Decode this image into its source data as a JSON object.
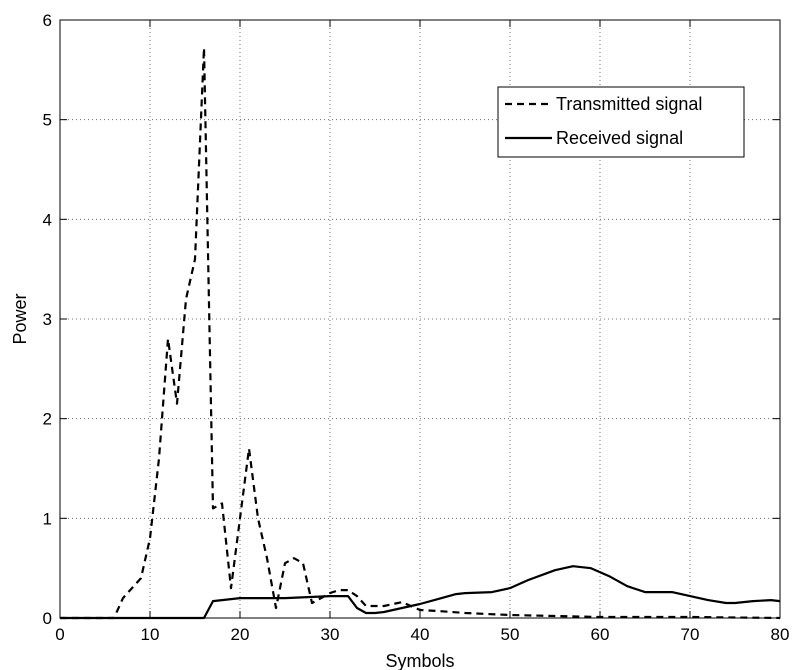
{
  "chart_data": {
    "type": "line",
    "title": "",
    "xlabel": "Symbols",
    "ylabel": "Power",
    "xlim": [
      0,
      80
    ],
    "ylim": [
      0,
      6
    ],
    "xticks": [
      0,
      10,
      20,
      30,
      40,
      50,
      60,
      70,
      80
    ],
    "yticks": [
      0,
      1,
      2,
      3,
      4,
      5,
      6
    ],
    "xtick_labels": [
      "0",
      "10",
      "20",
      "30",
      "40",
      "50",
      "60",
      "70",
      "80"
    ],
    "ytick_labels": [
      "0",
      "1",
      "2",
      "3",
      "4",
      "5",
      "6"
    ],
    "grid": true,
    "legend_position": "top-right",
    "series": [
      {
        "name": "Transmitted signal",
        "style": "dashed",
        "color": "#000000",
        "x": [
          0,
          6,
          7,
          8,
          9,
          10,
          11,
          12,
          13,
          14,
          15,
          16,
          17,
          18,
          19,
          20,
          21,
          22,
          23,
          24,
          25,
          26,
          27,
          28,
          29,
          30,
          31,
          32,
          33,
          34,
          35,
          36,
          38,
          40,
          42,
          45,
          50,
          55,
          60,
          65,
          70,
          80
        ],
        "y": [
          0,
          0,
          0.2,
          0.3,
          0.4,
          0.8,
          1.6,
          2.8,
          2.15,
          3.2,
          3.6,
          5.72,
          1.1,
          1.15,
          0.3,
          1.0,
          1.7,
          1.0,
          0.6,
          0.1,
          0.55,
          0.6,
          0.55,
          0.15,
          0.2,
          0.25,
          0.28,
          0.28,
          0.22,
          0.12,
          0.12,
          0.12,
          0.16,
          0.08,
          0.07,
          0.05,
          0.03,
          0.02,
          0.01,
          0.01,
          0.01,
          0.0
        ]
      },
      {
        "name": "Received signal",
        "style": "solid",
        "color": "#000000",
        "x": [
          0,
          16,
          17,
          20,
          25,
          30,
          32,
          33,
          34,
          35,
          36,
          38,
          40,
          42,
          44,
          45,
          48,
          50,
          52,
          55,
          57,
          59,
          61,
          63,
          65,
          67,
          68,
          70,
          72,
          74,
          75,
          77,
          79,
          80
        ],
        "y": [
          0,
          0,
          0.17,
          0.2,
          0.2,
          0.22,
          0.22,
          0.1,
          0.05,
          0.05,
          0.06,
          0.1,
          0.14,
          0.19,
          0.24,
          0.25,
          0.26,
          0.3,
          0.38,
          0.48,
          0.52,
          0.5,
          0.42,
          0.32,
          0.26,
          0.26,
          0.26,
          0.22,
          0.18,
          0.15,
          0.15,
          0.17,
          0.18,
          0.17
        ]
      }
    ]
  }
}
